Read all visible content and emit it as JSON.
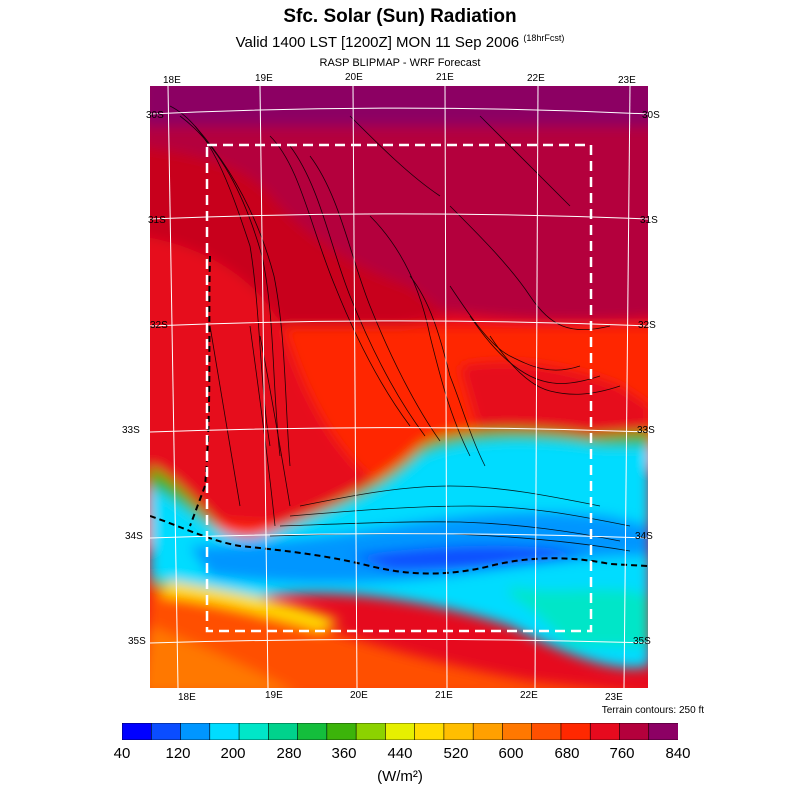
{
  "title": "Sfc. Solar (Sun) Radiation",
  "subtitle_main": "Valid 1400 LST [1200Z] MON 11 Sep 2006",
  "subtitle_small": "(18hrFcst)",
  "source": "RASP BLIPMAP - WRF Forecast",
  "top_lon_labels": [
    "18E",
    "19E",
    "20E",
    "21E",
    "22E",
    "23E"
  ],
  "bottom_lon_labels": [
    "18E",
    "19E",
    "20E",
    "21E",
    "22E",
    "23E"
  ],
  "left_lat_labels": [
    "30S",
    "31S",
    "32S",
    "33S",
    "34S",
    "35S"
  ],
  "right_lat_labels": [
    "30S",
    "31S",
    "32S",
    "33S",
    "34S",
    "35S"
  ],
  "terrain_note": "Terrain contours: 250 ft",
  "colorbar": {
    "colors": [
      "#0000ff",
      "#0a4dff",
      "#0096ff",
      "#00dcff",
      "#00e6c8",
      "#00d28c",
      "#14be3c",
      "#3cb40a",
      "#8cd200",
      "#e6f000",
      "#ffdc00",
      "#ffbe00",
      "#ffa000",
      "#ff7800",
      "#ff5000",
      "#ff2800",
      "#e60a1e",
      "#b4003c",
      "#8c0064"
    ],
    "tick_labels": [
      "40",
      "120",
      "200",
      "280",
      "360",
      "440",
      "520",
      "600",
      "680",
      "760",
      "840"
    ]
  },
  "units": "(W/m²)"
}
